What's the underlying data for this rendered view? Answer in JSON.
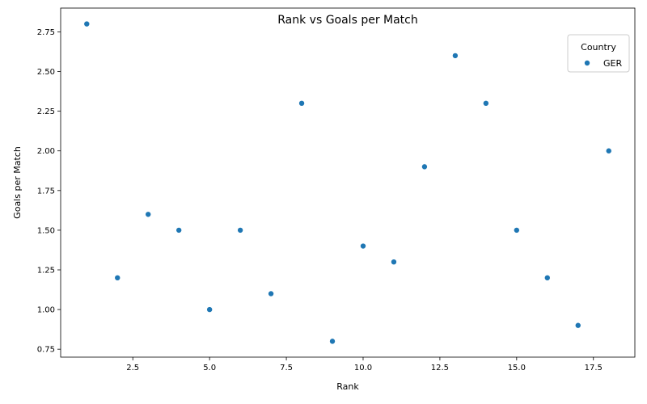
{
  "chart_data": {
    "type": "scatter",
    "title": "Rank vs Goals per Match",
    "xlabel": "Rank",
    "ylabel": "Goals per Match",
    "xlim": [
      0.15,
      18.85
    ],
    "ylim": [
      0.7,
      2.9
    ],
    "xticks": [
      2.5,
      5.0,
      7.5,
      10.0,
      12.5,
      15.0,
      17.5
    ],
    "xtick_labels": [
      "2.5",
      "5.0",
      "7.5",
      "10.0",
      "12.5",
      "15.0",
      "17.5"
    ],
    "yticks": [
      0.75,
      1.0,
      1.25,
      1.5,
      1.75,
      2.0,
      2.25,
      2.5,
      2.75
    ],
    "ytick_labels": [
      "0.75",
      "1.00",
      "1.25",
      "1.50",
      "1.75",
      "2.00",
      "2.25",
      "2.50",
      "2.75"
    ],
    "grid": false,
    "legend": {
      "title": "Country",
      "placement": "top-right"
    },
    "series": [
      {
        "name": "GER",
        "color": "#1f77b4",
        "x": [
          1,
          2,
          3,
          4,
          5,
          6,
          7,
          8,
          9,
          10,
          11,
          12,
          13,
          14,
          15,
          16,
          17,
          18
        ],
        "y": [
          2.8,
          1.2,
          1.6,
          1.5,
          1.0,
          1.5,
          1.1,
          2.3,
          0.8,
          1.4,
          1.3,
          1.9,
          2.6,
          2.3,
          1.5,
          1.2,
          0.9,
          2.0
        ]
      }
    ]
  }
}
